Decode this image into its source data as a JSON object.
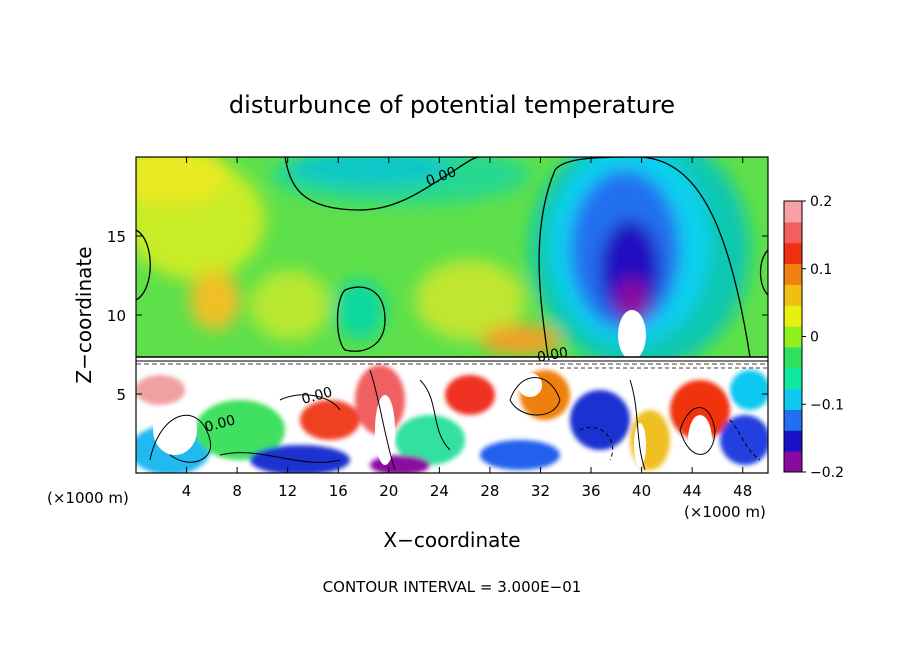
{
  "chart_data": {
    "type": "heatmap",
    "title": "disturbunce of potential temperature",
    "xlabel": "X−coordinate",
    "ylabel": "Z−coordinate",
    "x_unit": "(×1000 m)",
    "y_unit": "(×1000 m)",
    "xlim": [
      0,
      50
    ],
    "ylim": [
      0,
      20
    ],
    "x_ticks": [
      "4",
      "8",
      "12",
      "16",
      "20",
      "24",
      "28",
      "32",
      "36",
      "40",
      "44",
      "48"
    ],
    "y_ticks": [
      "5",
      "10",
      "15"
    ],
    "colorbar": {
      "min": -0.2,
      "max": 0.2,
      "tick_labels": [
        "0.2",
        "0.1",
        "0",
        "−0.1",
        "−0.2"
      ],
      "colors": [
        "#8a0aa0",
        "#1a10c8",
        "#2070f0",
        "#10c8f0",
        "#10e8a0",
        "#30e060",
        "#90f020",
        "#e8f010",
        "#f0c010",
        "#f08010",
        "#f03010",
        "#f06060",
        "#f8a0a8"
      ]
    },
    "contour_labels": [
      "0.00",
      "0.00",
      "0.00",
      "0.00"
    ],
    "footer": "CONTOUR INTERVAL = 3.000E−01"
  }
}
